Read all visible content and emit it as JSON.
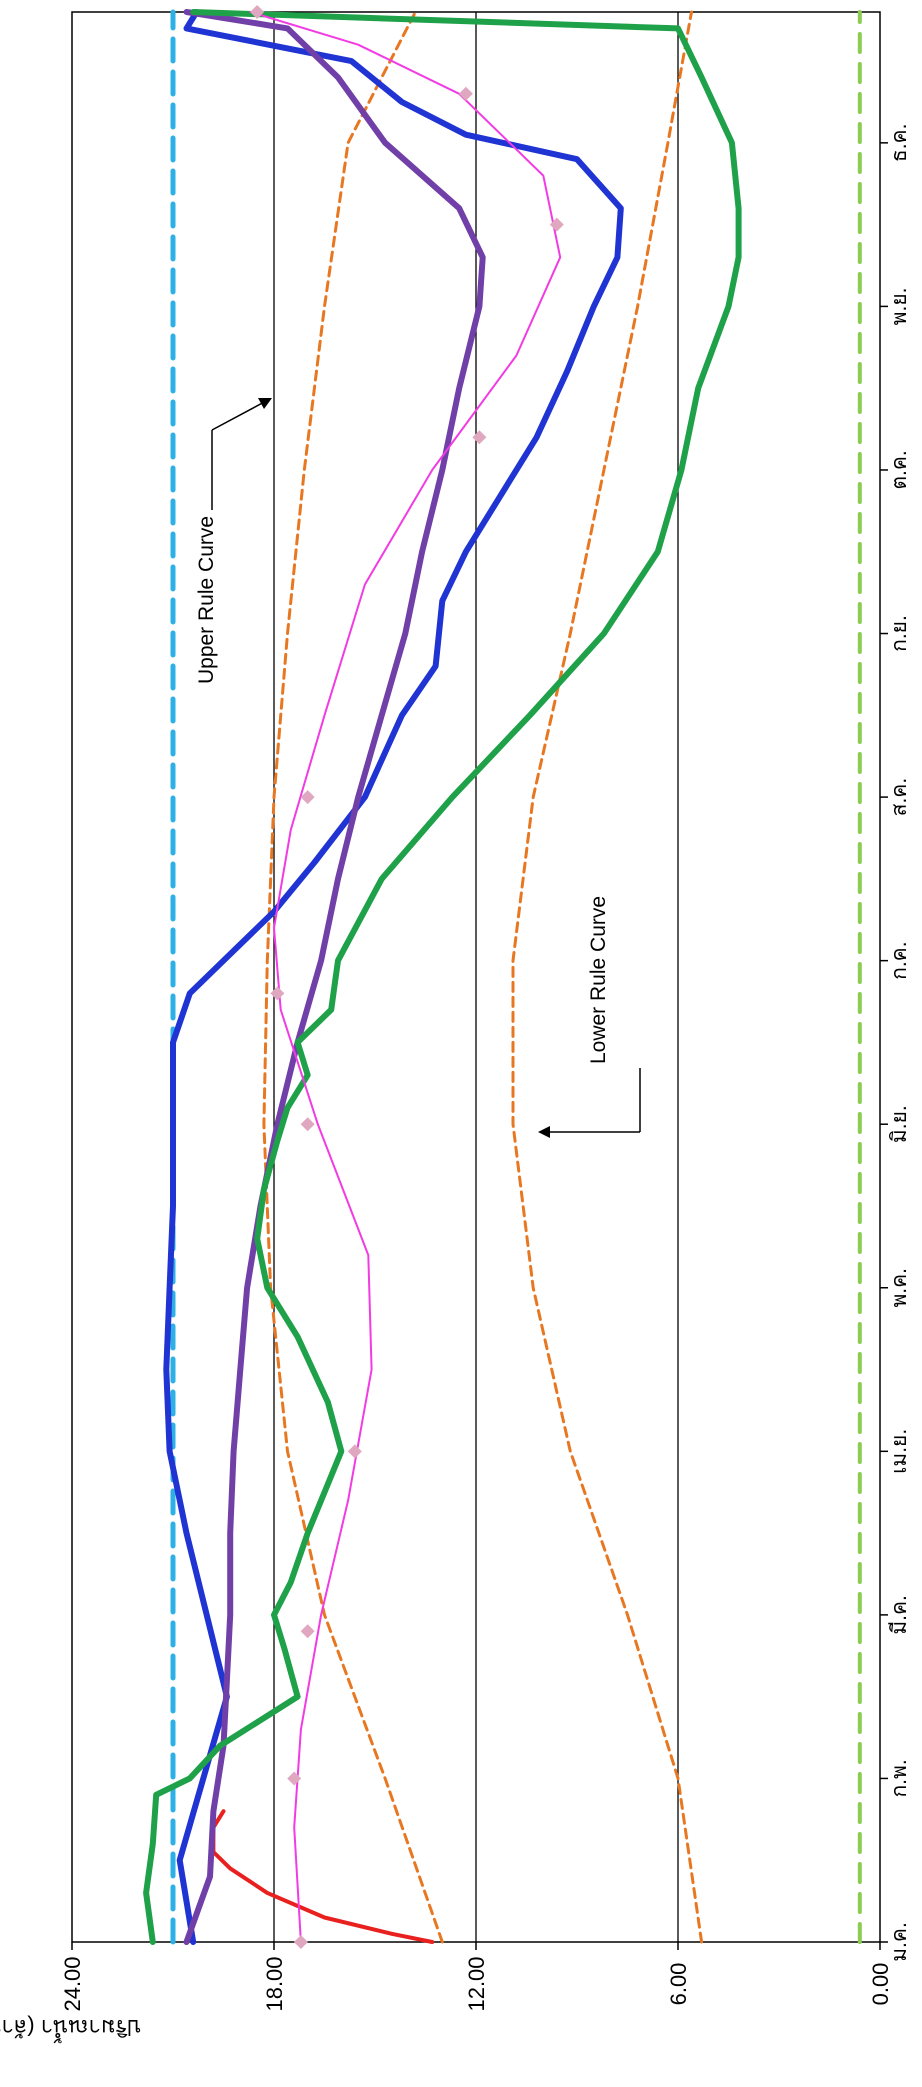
{
  "chart_data": {
    "type": "line",
    "orientation": "rotated 90° clockwise",
    "ylabel": "ปริมาณน้ำ (ล้าน ลบ.ม.)",
    "ylim": [
      0,
      24
    ],
    "y_ticks": [
      "0.00",
      "6.00",
      "12.00",
      "18.00",
      "24.00"
    ],
    "categories": [
      "ม.ค.",
      "ก.พ.",
      "มี.ค.",
      "เม.ย.",
      "พ.ค.",
      "มิ.ย.",
      "ก.ค.",
      "ส.ค.",
      "ก.ย.",
      "ต.ค.",
      "พ.ย.",
      "ธ.ค."
    ],
    "grid": "horizontal lines at 6, 12, 18",
    "annotations": [
      {
        "name": "upper",
        "text": "Upper Rule Curve"
      },
      {
        "name": "lower",
        "text": "Lower Rule Curve"
      }
    ],
    "series": [
      {
        "key": "upper_rule",
        "color": "#e87722",
        "style": "dashed",
        "x": [
          0,
          1,
          2,
          3,
          4,
          5,
          6,
          7,
          8,
          9,
          10,
          11,
          11.8
        ],
        "values": [
          13.0,
          14.7,
          16.5,
          17.6,
          18.1,
          18.3,
          18.2,
          18.0,
          17.6,
          17.1,
          16.5,
          15.8,
          13.8
        ]
      },
      {
        "key": "lower_rule",
        "color": "#e87722",
        "style": "dashed",
        "x": [
          0,
          1,
          2,
          3,
          4,
          5,
          6,
          7,
          8,
          9,
          10,
          11,
          11.8
        ],
        "values": [
          5.3,
          6.0,
          7.5,
          9.2,
          10.3,
          10.9,
          10.9,
          10.3,
          9.2,
          8.2,
          7.2,
          6.3,
          5.6
        ]
      },
      {
        "key": "max_level",
        "color": "#2db0e6",
        "style": "dashed",
        "x": [
          0,
          11.8
        ],
        "values": [
          21.0,
          21.0
        ]
      },
      {
        "key": "min_level",
        "color": "#8ccc50",
        "style": "dashed",
        "x": [
          0,
          11.8
        ],
        "values": [
          0.6,
          0.6
        ]
      },
      {
        "key": "red",
        "color": "#e8201e",
        "style": "solid",
        "x": [
          0,
          0.05,
          0.15,
          0.3,
          0.45,
          0.55,
          0.7,
          0.8
        ],
        "values": [
          13.3,
          14.5,
          16.5,
          18.2,
          19.3,
          19.8,
          19.8,
          19.5
        ]
      },
      {
        "key": "blue",
        "color": "#1f34d3",
        "style": "solid",
        "x": [
          0,
          0.5,
          1.0,
          1.5,
          2.0,
          2.5,
          3.0,
          3.5,
          4.0,
          4.5,
          5.0,
          5.5,
          5.8,
          6.0,
          6.3,
          6.6,
          7.0,
          7.5,
          7.8,
          8.2,
          8.5,
          8.8,
          9.2,
          9.6,
          10.0,
          10.3,
          10.6,
          10.9,
          11.05,
          11.25,
          11.5,
          11.7,
          11.8
        ],
        "values": [
          20.4,
          20.8,
          20.1,
          19.4,
          20.0,
          20.6,
          21.1,
          21.2,
          21.1,
          21.0,
          21.0,
          21.0,
          20.5,
          19.5,
          18.0,
          16.8,
          15.3,
          14.2,
          13.2,
          13.0,
          12.3,
          11.4,
          10.2,
          9.3,
          8.5,
          7.8,
          7.7,
          9.0,
          12.3,
          14.2,
          15.7,
          20.6,
          20.3
        ]
      },
      {
        "key": "purple",
        "color": "#7040a8",
        "style": "solid",
        "x": [
          0,
          0.4,
          0.8,
          1.2,
          1.6,
          2.0,
          2.5,
          3.0,
          3.5,
          4.0,
          4.5,
          5.0,
          5.5,
          6.0,
          6.5,
          7.0,
          7.5,
          8.0,
          8.5,
          9.0,
          9.5,
          10.0,
          10.3,
          10.6,
          11.0,
          11.4,
          11.7,
          11.8
        ],
        "values": [
          20.6,
          19.9,
          19.8,
          19.5,
          19.4,
          19.3,
          19.3,
          19.2,
          19.0,
          18.8,
          18.4,
          17.9,
          17.3,
          16.6,
          16.1,
          15.5,
          14.8,
          14.1,
          13.6,
          13.0,
          12.5,
          11.9,
          11.8,
          12.5,
          14.7,
          16.1,
          17.6,
          20.6
        ]
      },
      {
        "key": "green",
        "color": "#1fa14a",
        "style": "solid",
        "x": [
          0,
          0.3,
          0.6,
          0.9,
          1.0,
          1.2,
          1.5,
          1.8,
          2.0,
          2.2,
          2.5,
          2.8,
          3.0,
          3.3,
          3.7,
          4.0,
          4.3,
          4.6,
          4.9,
          5.1,
          5.3,
          5.5,
          5.7,
          6.0,
          6.5,
          7.0,
          7.5,
          8.0,
          8.5,
          9.0,
          9.5,
          10.0,
          10.3,
          10.6,
          11.0,
          11.4,
          11.7,
          11.8
        ],
        "values": [
          21.6,
          21.8,
          21.6,
          21.5,
          20.5,
          19.6,
          17.3,
          17.7,
          18.0,
          17.5,
          17.0,
          16.4,
          16.0,
          16.4,
          17.3,
          18.2,
          18.5,
          18.3,
          17.9,
          17.6,
          17.0,
          17.3,
          16.3,
          16.1,
          14.8,
          12.7,
          10.4,
          8.2,
          6.6,
          5.9,
          5.4,
          4.5,
          4.2,
          4.2,
          4.4,
          5.3,
          6.0,
          20.4
        ]
      },
      {
        "key": "magenta",
        "color": "#f23be3",
        "style": "solid",
        "marker_color": "#e0a8c0",
        "x": [
          0,
          0.7,
          1.3,
          2.0,
          2.7,
          3.5,
          4.2,
          5.0,
          5.7,
          6.2,
          6.8,
          7.5,
          8.3,
          9.0,
          9.7,
          10.3,
          10.8,
          11.3,
          11.6,
          11.8
        ],
        "values": [
          17.2,
          17.4,
          17.2,
          16.6,
          15.8,
          15.1,
          15.2,
          16.7,
          17.8,
          18.0,
          17.5,
          16.5,
          15.3,
          13.3,
          10.8,
          9.5,
          10.0,
          12.5,
          15.5,
          18.7
        ],
        "markers_x": [
          0,
          1.0,
          1.9,
          3.0,
          5.0,
          5.8,
          7.0,
          9.2,
          10.5,
          11.3,
          11.8
        ],
        "markers_y": [
          17.2,
          17.4,
          17.0,
          15.6,
          17.0,
          17.9,
          17.0,
          11.9,
          9.6,
          12.3,
          18.5
        ]
      }
    ]
  }
}
